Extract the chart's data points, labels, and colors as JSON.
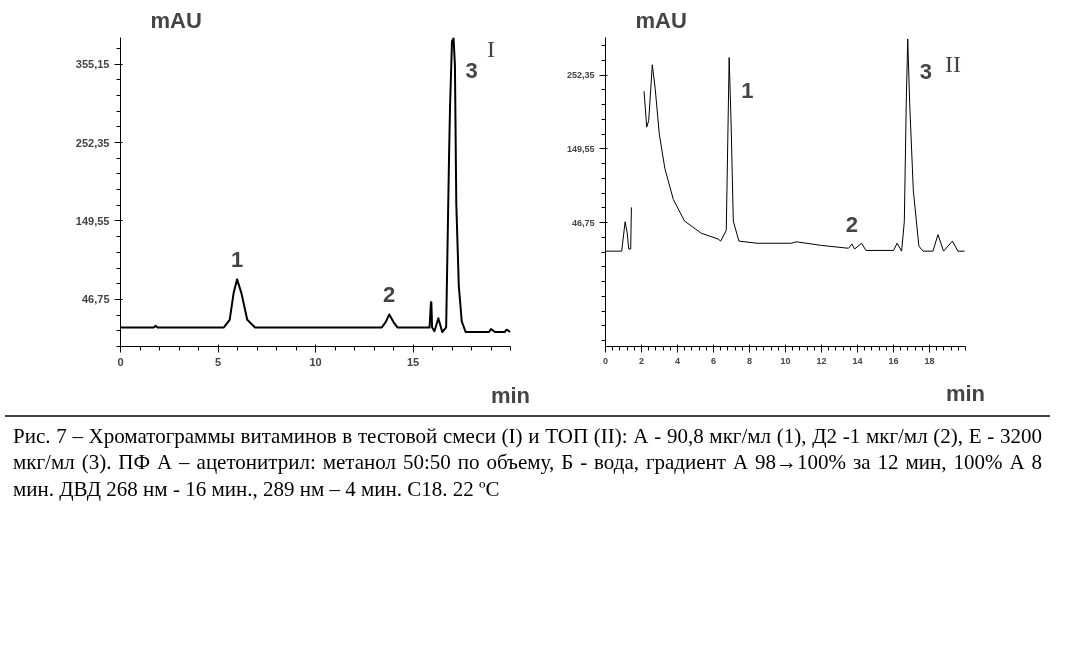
{
  "chart_data": [
    {
      "type": "line",
      "xlabel": "min",
      "ylabel": "mAU",
      "xlim": [
        0,
        20
      ],
      "ylim": [
        -15,
        390
      ],
      "xticks": [
        0,
        5,
        10,
        15
      ],
      "yticks": [
        {
          "value": 46.75,
          "label": "46,75"
        },
        {
          "value": 149.55,
          "label": "149,55"
        },
        {
          "value": 252.35,
          "label": "252,35"
        },
        {
          "value": 355.15,
          "label": "355,15"
        }
      ],
      "grid": false,
      "marker": "none",
      "line_style": "solid",
      "series": [
        {
          "color": "#000000",
          "x": [
            0,
            1.7,
            1.8,
            1.9,
            5.3,
            5.6,
            5.8,
            5.98,
            6.2,
            6.5,
            6.9,
            13.4,
            13.6,
            13.78,
            14.0,
            14.2,
            15.85,
            15.92,
            15.94,
            15.98,
            16.1,
            16.3,
            16.5,
            16.7,
            16.85,
            16.9,
            17.0,
            17.08,
            17.15,
            17.22,
            17.35,
            17.5,
            17.7,
            17.9,
            18.9,
            19.0,
            19.2,
            19.7,
            19.8,
            20.0
          ],
          "values": [
            10,
            10,
            12,
            10,
            10,
            20,
            55,
            73,
            55,
            20,
            10,
            10,
            17,
            27,
            17,
            10,
            10,
            43,
            43,
            10,
            5,
            22,
            4,
            10,
            236,
            300,
            385,
            389,
            354,
            172,
            64,
            18,
            4,
            4,
            4,
            8,
            4,
            4,
            7,
            4
          ]
        }
      ],
      "annotations": [
        {
          "text": "1",
          "x": 5.98,
          "y": 73
        },
        {
          "text": "2",
          "x": 13.78,
          "y": 27
        },
        {
          "text": "3",
          "x": 17.08,
          "y": 389
        },
        "I",
        "Рис. 7 – Хроматограммы витаминов в тестовой смеси (I) и ТОП (II): А - 90,8 мкг/мл (1), Д2 -1 мкг/мл (2), Е - 3200 мкг/мл (3). ПФ А – ацетонитрил: метанол 50:50 по объему, Б - вода, градиент А 98→100% за 12 мин, 100% А  8 мин. ДВД 268 нм - 16 мин., 289 нм – 4 мин. C18. 22 ºC"
      ]
    },
    {
      "type": "line",
      "xlabel": "min",
      "ylabel": "mAU",
      "xlim": [
        0,
        20
      ],
      "ylim": [
        -126,
        305
      ],
      "xticks": [
        0,
        2,
        4,
        6,
        8,
        10,
        12,
        14,
        16,
        18
      ],
      "yticks": [
        {
          "value": 46.75,
          "label": "46,75"
        },
        {
          "value": 149.55,
          "label": "149,55"
        },
        {
          "value": 252.35,
          "label": "252,35"
        }
      ],
      "grid": false,
      "marker": "none",
      "line_style": "solid",
      "series": [
        {
          "color": "#000000",
          "x": [
            0,
            0.9,
            1.09,
            1.21,
            1.29,
            1.4,
            1.44,
            1.47,
            1.95,
            2.14,
            2.29,
            2.4,
            2.6,
            2.76,
            2.99,
            3.3,
            3.77,
            4.39,
            5.32,
            6.25,
            6.4,
            6.71,
            6.87,
            6.98,
            7.1,
            7.41,
            8.42,
            10.3,
            10.6,
            12,
            13.5,
            13.69,
            13.84,
            14.23,
            14.47,
            16.0,
            16.2,
            16.45,
            16.6,
            16.71,
            16.79,
            16.9,
            17.1,
            17.41,
            17.64,
            18.19,
            18.47,
            18.78,
            19.27,
            19.58,
            19.95
          ],
          "values": [
            7,
            7,
            48,
            32,
            10,
            10,
            68,
            null,
            null,
            230,
            180,
            189,
            267,
            234,
            170,
            122,
            79,
            49,
            32,
            24,
            21,
            36,
            277,
            183,
            49,
            21,
            18,
            18,
            20,
            15,
            11,
            17,
            10,
            18,
            8,
            8,
            18,
            7,
            48,
            215,
            303,
            213,
            92,
            14,
            7,
            7,
            30,
            7,
            21,
            7,
            7
          ]
        }
      ],
      "annotations": [
        {
          "text": "1",
          "x": 6.87,
          "y": 277
        },
        {
          "text": "2",
          "x": 13.69,
          "y": 17
        },
        {
          "text": "3",
          "x": 16.79,
          "y": 303
        },
        "II"
      ]
    }
  ]
}
